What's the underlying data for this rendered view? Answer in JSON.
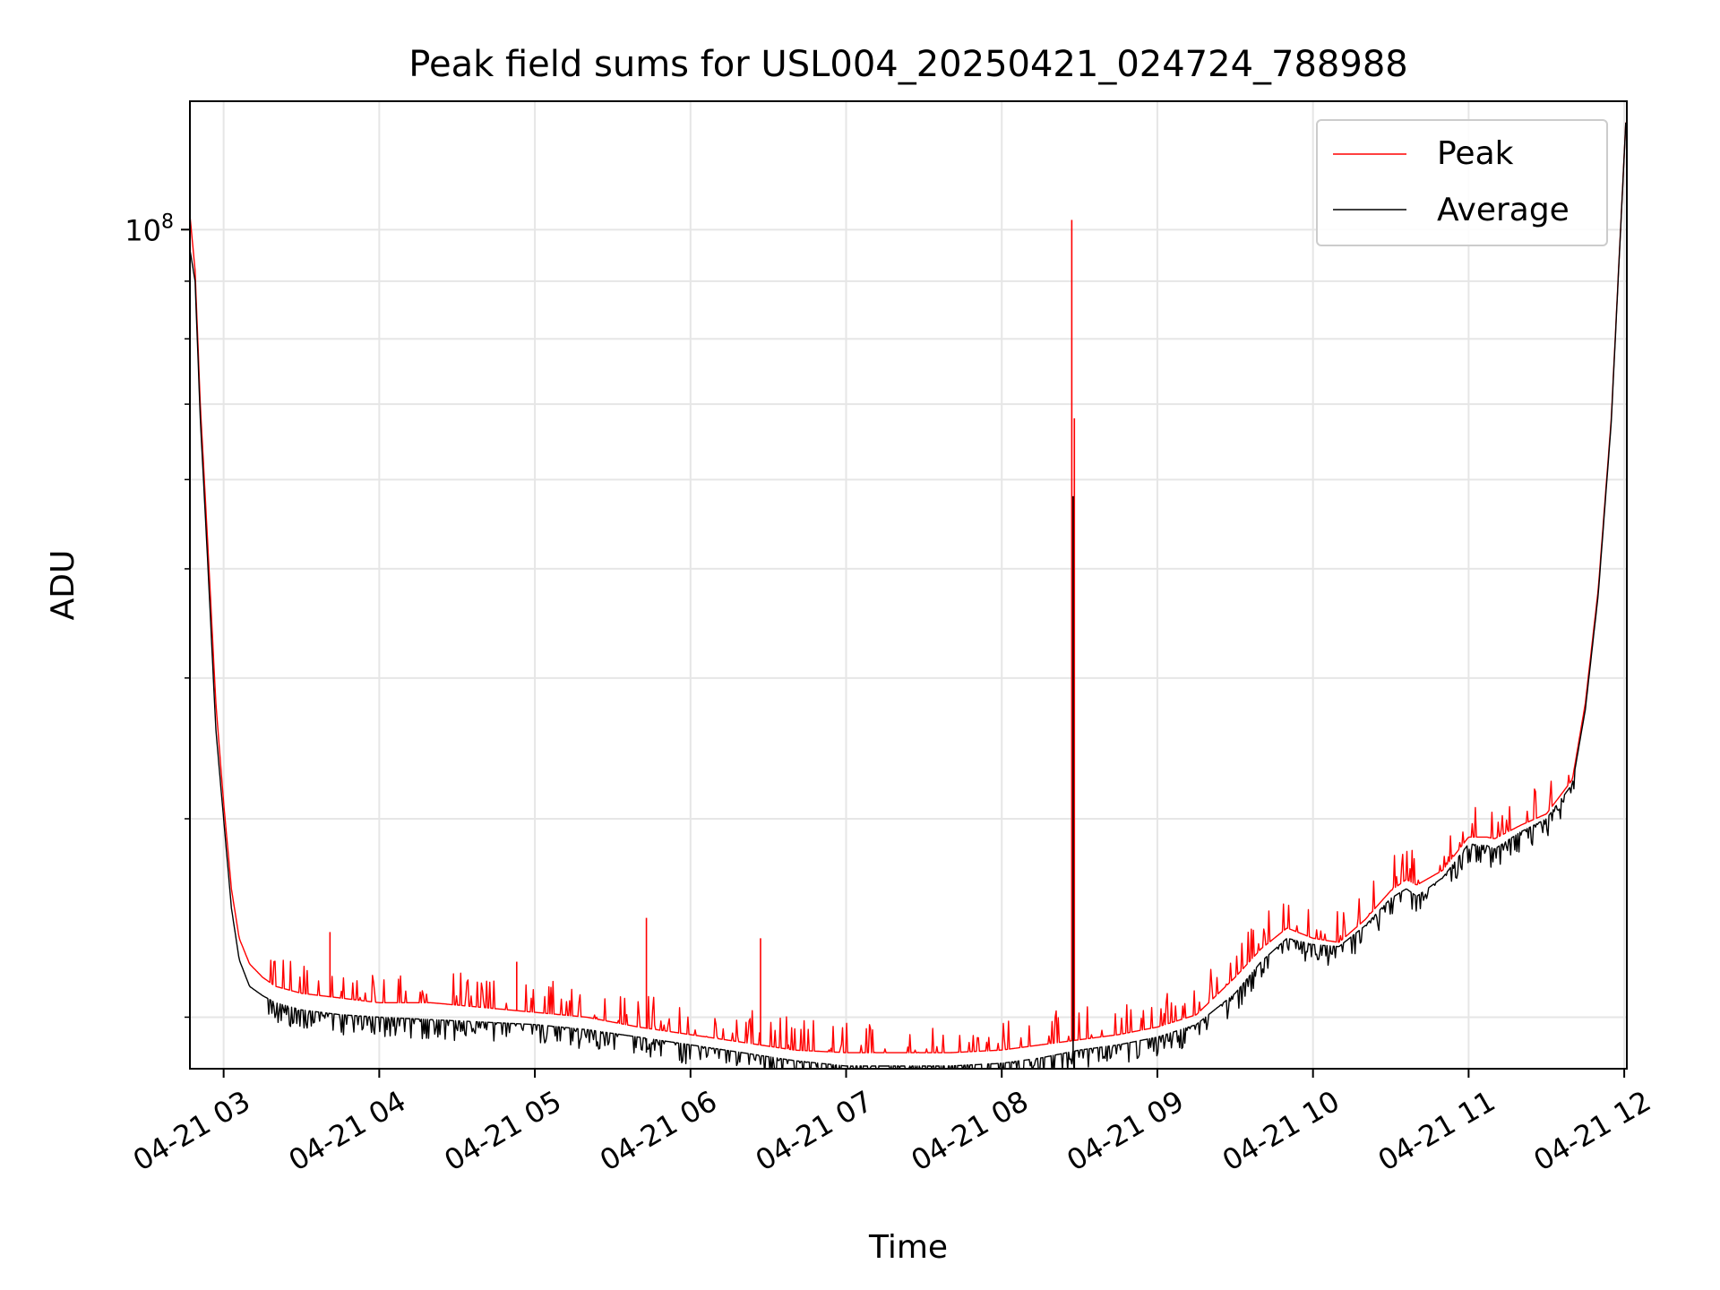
{
  "chart_data": {
    "type": "line",
    "title": "Peak field sums for USL004_20250421_024724_788988",
    "xlabel": "Time",
    "ylabel": "ADU",
    "yscale": "log",
    "ylim": [
      18000000,
      130000000
    ],
    "xlim": [
      "2025-04-21 02:47",
      "2025-04-21 12:01"
    ],
    "grid": true,
    "legend_position": "top-right",
    "x_ticks": [
      {
        "t": "2025-04-21 03:00",
        "label": "04-21 03"
      },
      {
        "t": "2025-04-21 04:00",
        "label": "04-21 04"
      },
      {
        "t": "2025-04-21 05:00",
        "label": "04-21 05"
      },
      {
        "t": "2025-04-21 06:00",
        "label": "04-21 06"
      },
      {
        "t": "2025-04-21 07:00",
        "label": "04-21 07"
      },
      {
        "t": "2025-04-21 08:00",
        "label": "04-21 08"
      },
      {
        "t": "2025-04-21 09:00",
        "label": "04-21 09"
      },
      {
        "t": "2025-04-21 10:00",
        "label": "04-21 10"
      },
      {
        "t": "2025-04-21 11:00",
        "label": "04-21 11"
      },
      {
        "t": "2025-04-21 12:00",
        "label": "04-21 12"
      }
    ],
    "y_tick_labels": [
      {
        "value": 100000000,
        "base": "10",
        "exp": "8"
      }
    ],
    "y_minor_ticks": [
      20000000,
      30000000,
      40000000,
      50000000,
      60000000,
      70000000,
      80000000,
      90000000
    ],
    "series": [
      {
        "name": "Peak",
        "color": "#ff0000",
        "x": [
          "2025-04-21 02:47",
          "2025-04-21 02:49",
          "2025-04-21 02:51",
          "2025-04-21 02:54",
          "2025-04-21 02:57",
          "2025-04-21 03:00",
          "2025-04-21 03:03",
          "2025-04-21 03:06",
          "2025-04-21 03:10",
          "2025-04-21 03:15",
          "2025-04-21 03:20",
          "2025-04-21 03:30",
          "2025-04-21 03:45",
          "2025-04-21 04:00",
          "2025-04-21 04:20",
          "2025-04-21 04:40",
          "2025-04-21 05:00",
          "2025-04-21 05:20",
          "2025-04-21 05:40",
          "2025-04-21 06:00",
          "2025-04-21 06:20",
          "2025-04-21 06:40",
          "2025-04-21 07:00",
          "2025-04-21 07:20",
          "2025-04-21 07:40",
          "2025-04-21 08:00",
          "2025-04-21 08:15",
          "2025-04-21 08:30",
          "2025-04-21 08:45",
          "2025-04-21 09:00",
          "2025-04-21 09:15",
          "2025-04-21 09:30",
          "2025-04-21 09:40",
          "2025-04-21 09:50",
          "2025-04-21 10:00",
          "2025-04-21 10:10",
          "2025-04-21 10:20",
          "2025-04-21 10:30",
          "2025-04-21 10:36",
          "2025-04-21 10:40",
          "2025-04-21 10:50",
          "2025-04-21 11:00",
          "2025-04-21 11:07",
          "2025-04-21 11:10",
          "2025-04-21 11:20",
          "2025-04-21 11:30",
          "2025-04-21 11:40",
          "2025-04-21 11:45",
          "2025-04-21 11:50",
          "2025-04-21 11:55",
          "2025-04-21 12:01"
        ],
        "y": [
          103000000,
          92000000,
          70000000,
          52000000,
          38000000,
          31000000,
          26000000,
          23500000,
          22300000,
          21700000,
          21300000,
          21000000,
          20800000,
          20600000,
          20600000,
          20400000,
          20200000,
          20000000,
          19600000,
          19300000,
          19000000,
          18700000,
          18600000,
          18600000,
          18600000,
          18700000,
          18900000,
          19100000,
          19300000,
          19600000,
          20100000,
          21700000,
          23000000,
          24000000,
          23500000,
          23300000,
          24400000,
          25900000,
          26500000,
          26200000,
          27000000,
          28900000,
          28900000,
          28800000,
          29600000,
          30300000,
          32500000,
          38000000,
          48000000,
          68000000,
          130000000
        ],
        "spikes": [
          {
            "t": "2025-04-21 02:57",
            "y": 38000000
          },
          {
            "t": "2025-04-21 03:41",
            "y": 23800000
          },
          {
            "t": "2025-04-21 04:53",
            "y": 22400000
          },
          {
            "t": "2025-04-21 05:43",
            "y": 24500000
          },
          {
            "t": "2025-04-21 06:27",
            "y": 23500000
          },
          {
            "t": "2025-04-21 08:27",
            "y": 102000000
          },
          {
            "t": "2025-04-21 08:28",
            "y": 68000000
          }
        ]
      },
      {
        "name": "Average",
        "color": "#000000",
        "x": [
          "2025-04-21 02:47",
          "2025-04-21 02:49",
          "2025-04-21 02:51",
          "2025-04-21 02:54",
          "2025-04-21 02:57",
          "2025-04-21 03:00",
          "2025-04-21 03:03",
          "2025-04-21 03:06",
          "2025-04-21 03:10",
          "2025-04-21 03:15",
          "2025-04-21 03:20",
          "2025-04-21 03:30",
          "2025-04-21 03:45",
          "2025-04-21 04:00",
          "2025-04-21 04:20",
          "2025-04-21 04:40",
          "2025-04-21 05:00",
          "2025-04-21 05:20",
          "2025-04-21 05:40",
          "2025-04-21 06:00",
          "2025-04-21 06:20",
          "2025-04-21 06:40",
          "2025-04-21 07:00",
          "2025-04-21 07:20",
          "2025-04-21 07:40",
          "2025-04-21 08:00",
          "2025-04-21 08:15",
          "2025-04-21 08:30",
          "2025-04-21 08:45",
          "2025-04-21 09:00",
          "2025-04-21 09:15",
          "2025-04-21 09:30",
          "2025-04-21 09:40",
          "2025-04-21 09:50",
          "2025-04-21 10:00",
          "2025-04-21 10:10",
          "2025-04-21 10:20",
          "2025-04-21 10:30",
          "2025-04-21 10:36",
          "2025-04-21 10:40",
          "2025-04-21 10:50",
          "2025-04-21 11:00",
          "2025-04-21 11:07",
          "2025-04-21 11:10",
          "2025-04-21 11:20",
          "2025-04-21 11:30",
          "2025-04-21 11:40",
          "2025-04-21 11:45",
          "2025-04-21 11:50",
          "2025-04-21 11:55",
          "2025-04-21 12:01"
        ],
        "y": [
          96000000,
          90000000,
          68000000,
          50000000,
          36000000,
          30000000,
          25000000,
          22500000,
          21300000,
          20900000,
          20600000,
          20300000,
          20100000,
          20000000,
          19900000,
          19800000,
          19700000,
          19500000,
          19200000,
          18900000,
          18600000,
          18300000,
          18100000,
          18100000,
          18100000,
          18200000,
          18400000,
          18700000,
          18900000,
          19200000,
          19700000,
          21000000,
          22400000,
          23500000,
          23200000,
          23100000,
          24100000,
          25500000,
          26000000,
          25600000,
          26600000,
          28500000,
          28400000,
          28200000,
          29200000,
          30000000,
          32200000,
          37500000,
          47500000,
          67500000,
          130000000
        ],
        "dips": [
          {
            "t": "2025-04-21 05:43",
            "y": 18600000
          },
          {
            "t": "2025-04-21 08:28",
            "y": 18000000
          }
        ]
      }
    ]
  }
}
